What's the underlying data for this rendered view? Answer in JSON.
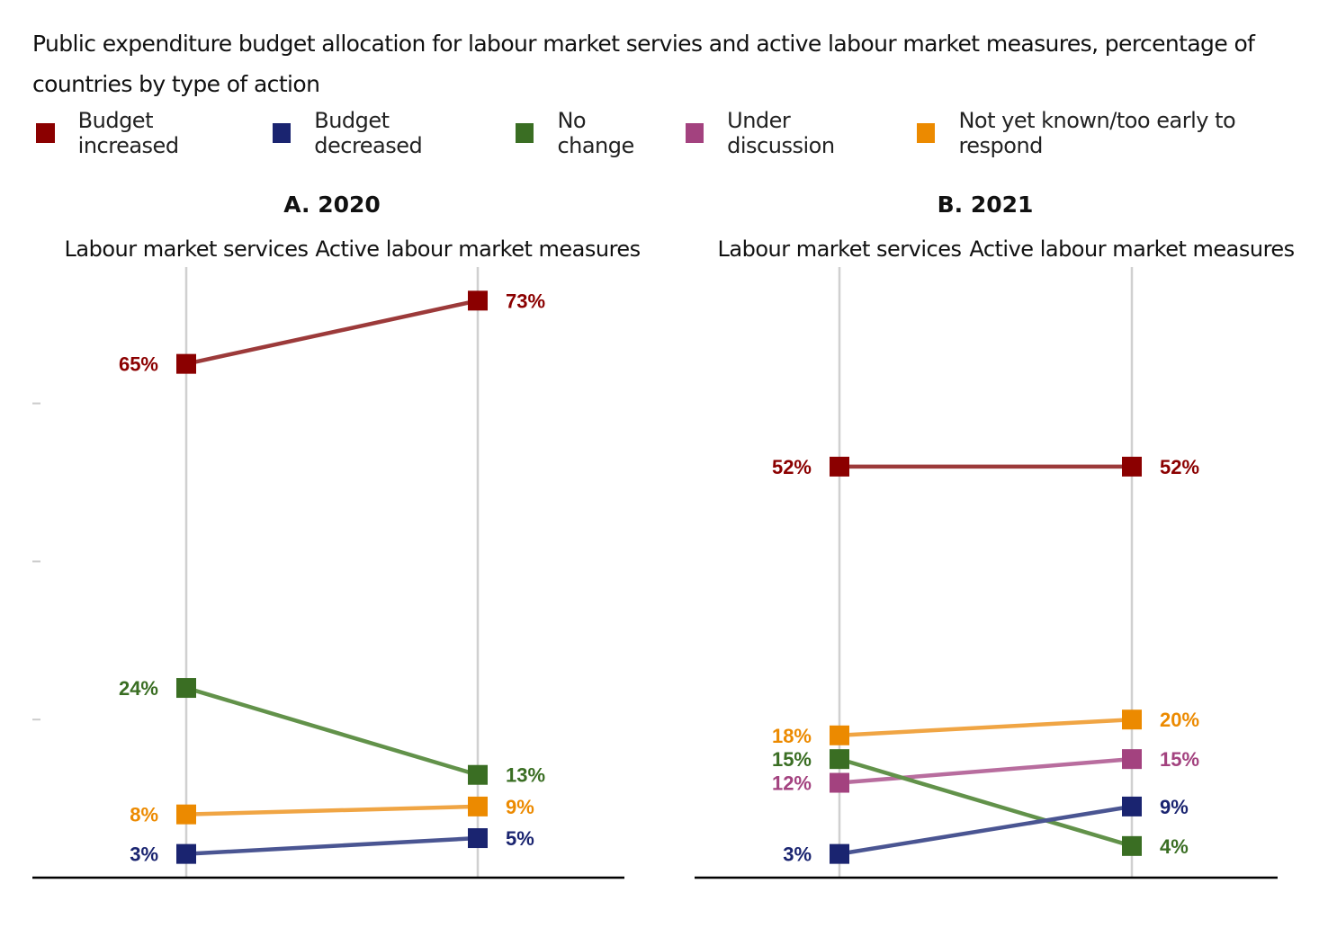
{
  "title": "Public expenditure budget allocation for labour market servies and active labour market measures, percentage of countries by type of action",
  "legend": [
    {
      "label": "Budget increased",
      "color": "#8b0000",
      "icon": "square-marker"
    },
    {
      "label": "Budget decreased",
      "color": "#1a2470",
      "icon": "square-marker"
    },
    {
      "label": "No change",
      "color": "#3a6e23",
      "icon": "square-marker"
    },
    {
      "label": "Under discussion",
      "color": "#a3427f",
      "icon": "square-marker"
    },
    {
      "label": "Not yet known/too early to respond",
      "color": "#ec8a00",
      "icon": "square-marker"
    }
  ],
  "chart_data": [
    {
      "type": "line",
      "title": "A. 2020",
      "categories": [
        "Labour market services",
        "Active labour market measures"
      ],
      "ylim": [
        0,
        80
      ],
      "grid": false,
      "series": [
        {
          "name": "Budget increased",
          "values": [
            65,
            73
          ],
          "labels": [
            "65%",
            "73%"
          ],
          "color": "#8b0000",
          "line_color": "#9c3a3a"
        },
        {
          "name": "No change",
          "values": [
            24,
            13
          ],
          "labels": [
            "24%",
            "13%"
          ],
          "color": "#3a6e23",
          "line_color": "#62924a"
        },
        {
          "name": "Not yet known/too early to respond",
          "values": [
            8,
            9
          ],
          "labels": [
            "8%",
            "9%"
          ],
          "color": "#ec8a00",
          "line_color": "#f0a544"
        },
        {
          "name": "Budget decreased",
          "values": [
            3,
            5
          ],
          "labels": [
            "3%",
            "5%"
          ],
          "color": "#1a2470",
          "line_color": "#4a5592"
        }
      ]
    },
    {
      "type": "line",
      "title": "B. 2021",
      "categories": [
        "Labour market services",
        "Active labour market measures"
      ],
      "ylim": [
        0,
        80
      ],
      "grid": false,
      "series": [
        {
          "name": "Budget increased",
          "values": [
            52,
            52
          ],
          "labels": [
            "52%",
            "52%"
          ],
          "color": "#8b0000",
          "line_color": "#9c3a3a"
        },
        {
          "name": "Not yet known/too early to respond",
          "values": [
            18,
            20
          ],
          "labels": [
            "18%",
            "20%"
          ],
          "color": "#ec8a00",
          "line_color": "#f0a544"
        },
        {
          "name": "Under discussion",
          "values": [
            12,
            15
          ],
          "labels": [
            "12%",
            "15%"
          ],
          "color": "#a3427f",
          "line_color": "#b86d9e"
        },
        {
          "name": "No change",
          "values": [
            15,
            4
          ],
          "labels": [
            "15%",
            "4%"
          ],
          "color": "#3a6e23",
          "line_color": "#62924a"
        },
        {
          "name": "Budget decreased",
          "values": [
            3,
            9
          ],
          "labels": [
            "3%",
            "9%"
          ],
          "color": "#1a2470",
          "line_color": "#4a5592"
        }
      ]
    }
  ]
}
